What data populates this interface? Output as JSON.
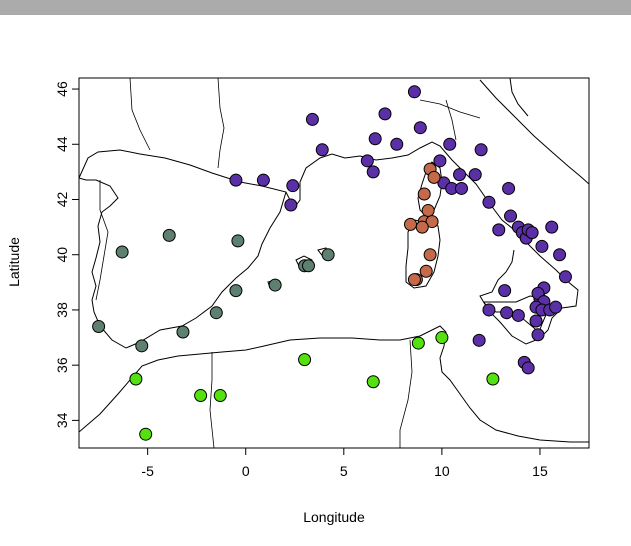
{
  "chart_data": {
    "type": "scatter",
    "title": "",
    "xlabel": "Longitude",
    "ylabel": "Latitude",
    "xlim": [
      -8.5,
      17.5
    ],
    "ylim": [
      33,
      46.4
    ],
    "x_ticks": [
      -5,
      0,
      5,
      10,
      15
    ],
    "x_tick_labels": [
      "-5",
      "0",
      "5",
      "10",
      "15"
    ],
    "y_ticks": [
      34,
      36,
      38,
      40,
      42,
      44,
      46
    ],
    "y_tick_labels": [
      "34",
      "36",
      "38",
      "40",
      "42",
      "44",
      "46"
    ],
    "grid": false,
    "basemap": "Mediterranean coastlines and borders (outline)",
    "series": [
      {
        "color": "#5b2fa6",
        "points": [
          [
            3.4,
            44.9
          ],
          [
            8.6,
            45.9
          ],
          [
            7.1,
            45.1
          ],
          [
            6.6,
            44.2
          ],
          [
            7.7,
            44.0
          ],
          [
            8.9,
            44.6
          ],
          [
            3.9,
            43.8
          ],
          [
            6.2,
            43.4
          ],
          [
            6.5,
            43.0
          ],
          [
            -0.5,
            42.7
          ],
          [
            0.9,
            42.7
          ],
          [
            2.4,
            42.5
          ],
          [
            2.3,
            41.8
          ],
          [
            9.9,
            43.4
          ],
          [
            10.4,
            44.0
          ],
          [
            10.9,
            42.9
          ],
          [
            10.1,
            42.6
          ],
          [
            10.5,
            42.4
          ],
          [
            11.0,
            42.4
          ],
          [
            11.7,
            42.9
          ],
          [
            12.0,
            43.8
          ],
          [
            12.4,
            41.9
          ],
          [
            13.4,
            42.4
          ],
          [
            12.9,
            40.9
          ],
          [
            13.5,
            41.4
          ],
          [
            13.9,
            41.0
          ],
          [
            14.1,
            40.8
          ],
          [
            14.3,
            40.6
          ],
          [
            14.4,
            40.9
          ],
          [
            14.6,
            40.8
          ],
          [
            15.1,
            40.3
          ],
          [
            15.6,
            41.0
          ],
          [
            16.0,
            40.0
          ],
          [
            16.3,
            39.2
          ],
          [
            15.2,
            38.8
          ],
          [
            15.0,
            38.4
          ],
          [
            14.9,
            38.6
          ],
          [
            15.2,
            38.3
          ],
          [
            13.2,
            38.7
          ],
          [
            12.4,
            38.0
          ],
          [
            13.3,
            37.9
          ],
          [
            13.9,
            37.8
          ],
          [
            14.8,
            38.1
          ],
          [
            14.8,
            37.6
          ],
          [
            15.1,
            38.0
          ],
          [
            15.5,
            38.0
          ],
          [
            15.8,
            38.1
          ],
          [
            14.9,
            37.1
          ],
          [
            14.2,
            36.1
          ],
          [
            14.4,
            35.9
          ],
          [
            11.9,
            36.9
          ]
        ]
      },
      {
        "color": "#c46a4a",
        "points": [
          [
            9.4,
            43.1
          ],
          [
            9.6,
            42.8
          ],
          [
            9.1,
            42.2
          ],
          [
            9.3,
            41.6
          ],
          [
            9.1,
            41.2
          ],
          [
            9.5,
            41.2
          ],
          [
            8.4,
            41.1
          ],
          [
            9.0,
            41.0
          ],
          [
            9.4,
            40.0
          ],
          [
            9.2,
            39.4
          ],
          [
            8.7,
            39.1
          ],
          [
            8.6,
            39.1
          ]
        ]
      },
      {
        "color": "#5d8070",
        "points": [
          [
            -6.3,
            40.1
          ],
          [
            -3.9,
            40.7
          ],
          [
            -0.4,
            40.5
          ],
          [
            -0.5,
            38.7
          ],
          [
            -1.5,
            37.9
          ],
          [
            -3.2,
            37.2
          ],
          [
            -5.3,
            36.7
          ],
          [
            -7.5,
            37.4
          ],
          [
            1.5,
            38.9
          ],
          [
            3.0,
            39.6
          ],
          [
            3.2,
            39.6
          ],
          [
            4.2,
            40.0
          ]
        ]
      },
      {
        "color": "#55e010",
        "points": [
          [
            -5.6,
            35.5
          ],
          [
            -5.1,
            33.5
          ],
          [
            -2.3,
            34.9
          ],
          [
            -1.3,
            34.9
          ],
          [
            3.0,
            36.2
          ],
          [
            6.5,
            35.4
          ],
          [
            8.8,
            36.8
          ],
          [
            10.0,
            37.0
          ],
          [
            12.6,
            35.5
          ]
        ]
      }
    ]
  }
}
